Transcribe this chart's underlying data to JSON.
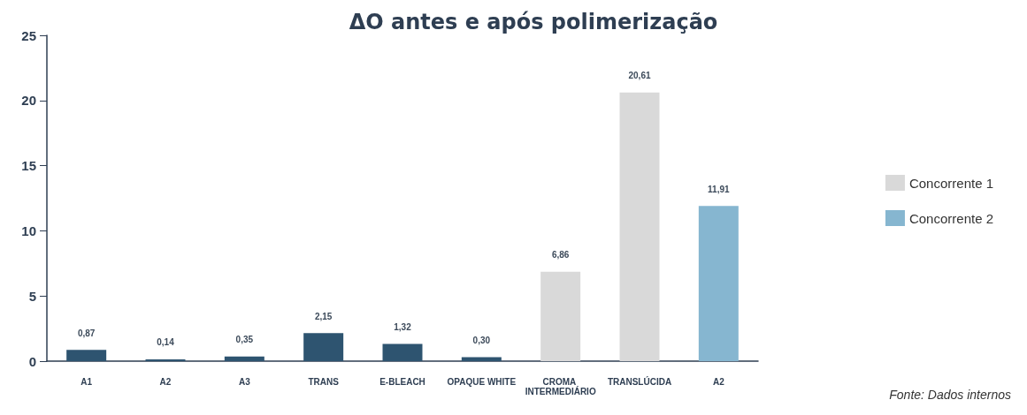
{
  "chart_data": {
    "type": "bar",
    "title": "ΔO antes e após polimerização",
    "categories": [
      "A1",
      "A2",
      "A3",
      "TRANS",
      "E-BLEACH",
      "OPAQUE WHITE",
      "CROMA INTERMEDIÁRIO",
      "TRANSLÚCIDA",
      "A2"
    ],
    "series": [
      {
        "color": "#2e5470",
        "values": [
          0.87,
          0.14,
          0.35,
          2.15,
          1.32,
          0.3,
          null,
          null,
          null
        ],
        "value_labels": [
          "0,87",
          "0,14",
          "0,35",
          "2,15",
          "1,32",
          "0,30",
          null,
          null,
          null
        ]
      },
      {
        "name": "Concorrente 1",
        "color": "#d9d9d9",
        "values": [
          null,
          null,
          null,
          null,
          null,
          null,
          6.86,
          20.61,
          null
        ],
        "value_labels": [
          null,
          null,
          null,
          null,
          null,
          null,
          "6,86",
          "20,61",
          null
        ]
      },
      {
        "name": "Concorrente 2",
        "color": "#86b6d0",
        "values": [
          null,
          null,
          null,
          null,
          null,
          null,
          null,
          null,
          11.91
        ],
        "value_labels": [
          null,
          null,
          null,
          null,
          null,
          null,
          null,
          null,
          "11,91"
        ]
      }
    ],
    "ylim": [
      0,
      25
    ],
    "yticks": [
      0,
      5,
      10,
      15,
      20,
      25
    ],
    "grid": false,
    "legend": "right",
    "annotations": [
      "Fonte: Dados internos"
    ]
  }
}
